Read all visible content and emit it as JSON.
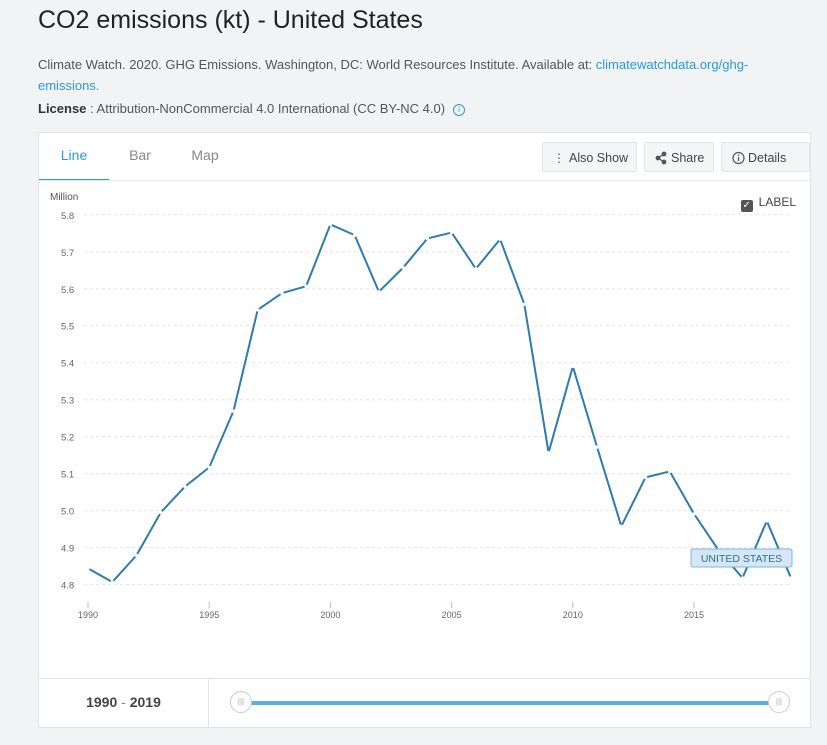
{
  "page": {
    "title": "CO2 emissions (kt) - United States",
    "source_text": "Climate Watch. 2020. GHG Emissions. Washington, DC: World Resources Institute. Available at: ",
    "source_link": "climatewatchdata.org/ghg-emissions.",
    "license_label": "License",
    "license_text": " : Attribution-NonCommercial 4.0 International (CC BY-NC 4.0)"
  },
  "tabs": [
    {
      "label": "Line",
      "active": true
    },
    {
      "label": "Bar",
      "active": false
    },
    {
      "label": "Map",
      "active": false
    }
  ],
  "toolbar": {
    "also_show": "Also Show",
    "share": "Share",
    "details": "Details"
  },
  "label_toggle": {
    "label": "LABEL",
    "checked": true
  },
  "range": {
    "start": "1990",
    "end": "2019",
    "sep": " - "
  },
  "chart_data": {
    "type": "line",
    "title": "",
    "xlabel": "",
    "ylabel": "Million",
    "ylim": [
      4.78,
      5.84
    ],
    "xlim": [
      1990,
      2019
    ],
    "yticks": [
      "4.8",
      "4.9",
      "5.0",
      "5.1",
      "5.2",
      "5.3",
      "5.4",
      "5.5",
      "5.6",
      "5.7",
      "5.8"
    ],
    "xticks": [
      "1990",
      "1995",
      "2000",
      "2005",
      "2010",
      "2015"
    ],
    "grid": true,
    "color": "#2e7bb0",
    "series": [
      {
        "name": "UNITED STATES",
        "x": [
          1990,
          1991,
          1992,
          1993,
          1994,
          1995,
          1996,
          1997,
          1998,
          1999,
          2000,
          2001,
          2002,
          2003,
          2004,
          2005,
          2006,
          2007,
          2008,
          2009,
          2010,
          2011,
          2012,
          2013,
          2014,
          2015,
          2016,
          2017,
          2018,
          2019
        ],
        "values": [
          4.844,
          4.807,
          4.879,
          4.995,
          5.065,
          5.117,
          5.269,
          5.543,
          5.588,
          5.607,
          5.774,
          5.745,
          5.592,
          5.657,
          5.736,
          5.752,
          5.654,
          5.734,
          5.558,
          5.157,
          5.39,
          5.172,
          4.958,
          5.09,
          5.106,
          4.991,
          4.894,
          4.818,
          4.972,
          4.818
        ]
      }
    ]
  }
}
